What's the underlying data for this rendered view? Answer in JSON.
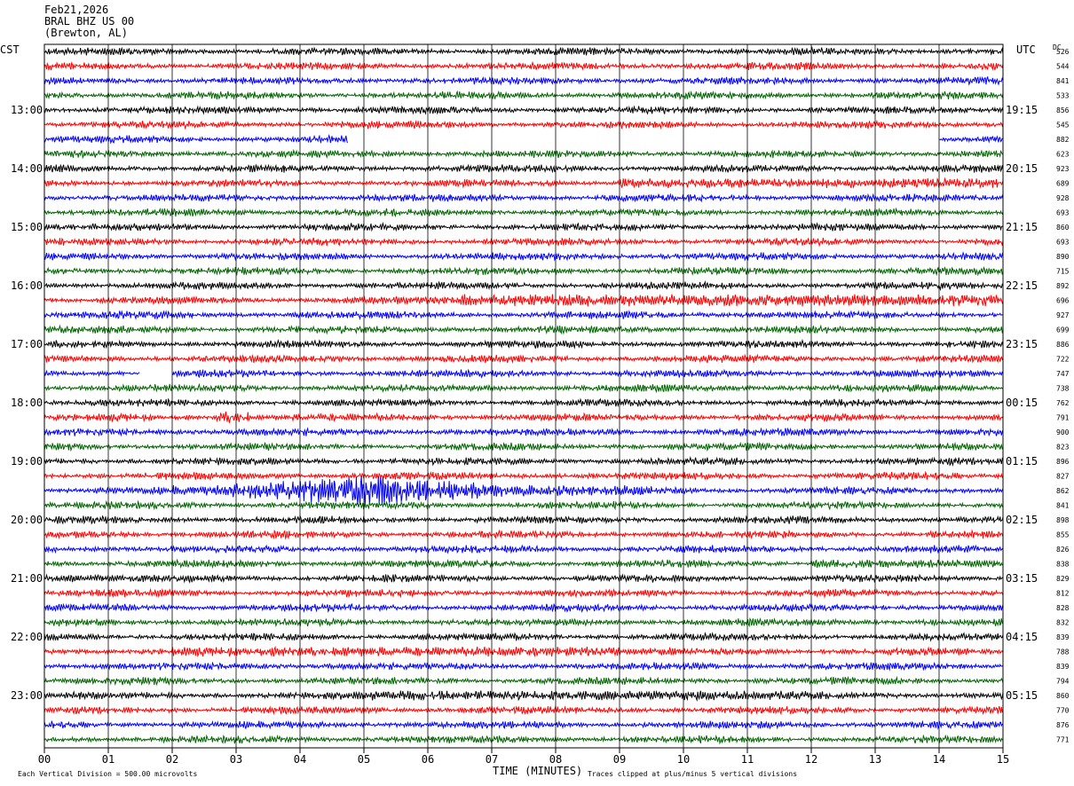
{
  "header": {
    "date": "Feb21,2026",
    "station": "BRAL BHZ US 00",
    "location": "(Brewton, AL)"
  },
  "left_timezone": "CST",
  "right_timezone": "UTC",
  "dc_label": "DC",
  "footer": {
    "scale_note": "Each Vertical Division =  500.00 microvolts",
    "clip_note": "Traces clipped at plus/minus 5 vertical divisions",
    "x_axis_title": "TIME (MINUTES)"
  },
  "chart_data": {
    "type": "line",
    "title": "",
    "xlabel": "TIME (MINUTES)",
    "x_ticks": [
      "00",
      "01",
      "02",
      "03",
      "04",
      "05",
      "06",
      "07",
      "08",
      "09",
      "10",
      "11",
      "12",
      "13",
      "14",
      "15"
    ],
    "xlim": [
      0,
      15
    ],
    "trace_count": 48,
    "minutes_per_trace": 15,
    "trace_colors": [
      "#000000",
      "#ff0000",
      "#0000ff",
      "#006400"
    ],
    "left_hour_labels": [
      "13:00",
      "14:00",
      "15:00",
      "16:00",
      "17:00",
      "18:00",
      "19:00",
      "20:00",
      "21:00",
      "22:00",
      "23:00"
    ],
    "right_hour_labels": [
      "19:15",
      "20:15",
      "21:15",
      "22:15",
      "23:15",
      "00:15",
      "01:15",
      "02:15",
      "03:15",
      "04:15",
      "05:15"
    ],
    "dc_offsets": [
      "526",
      "544",
      "841",
      "533",
      "856",
      "545",
      "882",
      "623",
      "923",
      "689",
      "928",
      "693",
      "860",
      "693",
      "890",
      "715",
      "892",
      "696",
      "927",
      "699",
      "886",
      "722",
      "747",
      "738",
      "762",
      "791",
      "900",
      "823",
      "896",
      "827",
      "862",
      "841",
      "898",
      "855",
      "826",
      "838",
      "829",
      "812",
      "828",
      "832",
      "839",
      "788",
      "839",
      "794",
      "860",
      "770",
      "876",
      "771"
    ],
    "events": [
      {
        "trace": 30,
        "description": "large earthquake signal",
        "start_min": 2.0,
        "end_min": 9.5,
        "peak_min": 5.1,
        "amplitude_div": 5
      },
      {
        "trace": 17,
        "description": "elevated noise",
        "start_min": 6.5,
        "end_min": 15,
        "amplitude_div": 2
      },
      {
        "trace": 9,
        "description": "elevated noise",
        "start_min": 9.0,
        "end_min": 15,
        "amplitude_div": 1.6
      },
      {
        "trace": 41,
        "description": "elevated noise",
        "start_min": 2.0,
        "end_min": 9.0,
        "amplitude_div": 1.6
      },
      {
        "trace": 44,
        "description": "elevated noise",
        "start_min": 5.0,
        "end_min": 12.0,
        "amplitude_div": 1.6
      },
      {
        "trace": 35,
        "description": "elevated noise",
        "start_min": 12.0,
        "end_min": 15,
        "amplitude_div": 1.4
      },
      {
        "trace": 36,
        "description": "elevated noise",
        "start_min": 0,
        "end_min": 2.5,
        "amplitude_div": 1.2
      },
      {
        "trace": 25,
        "description": "local burst",
        "start_min": 2.7,
        "end_min": 3.2,
        "amplitude_div": 2
      }
    ],
    "gaps": [
      {
        "trace": 6,
        "start_min": 4.75,
        "end_min": 14.0
      },
      {
        "trace": 22,
        "start_min": 1.5,
        "end_min": 2.0
      }
    ]
  }
}
